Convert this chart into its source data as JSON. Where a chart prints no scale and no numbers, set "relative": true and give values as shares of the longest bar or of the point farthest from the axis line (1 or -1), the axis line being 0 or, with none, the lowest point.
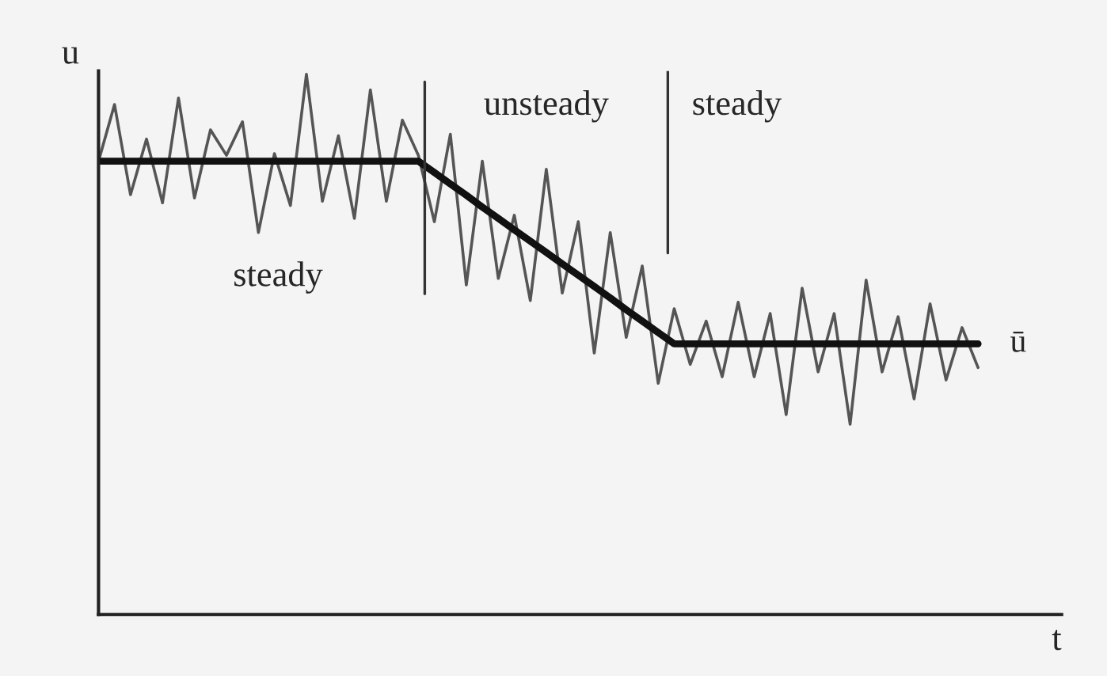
{
  "chart_data": {
    "type": "line",
    "relative": true,
    "xlabel": "t",
    "ylabel": "u",
    "marker": "none",
    "line_style": "solid",
    "categories": [
      null,
      null,
      null,
      null,
      null,
      null,
      null,
      null,
      null,
      null,
      null,
      null,
      null,
      null,
      null,
      null,
      null,
      null,
      null,
      null,
      null,
      null,
      null,
      null,
      null,
      null,
      null,
      null,
      null,
      null,
      null,
      null,
      null,
      null,
      null,
      null,
      null,
      null,
      null,
      null,
      null,
      null,
      null,
      null,
      null,
      null,
      null,
      null,
      null,
      null,
      null,
      null,
      null,
      null,
      null,
      null
    ],
    "annotations": [
      "steady",
      "unsteady",
      "steady"
    ],
    "series": [
      {
        "color": "#555555",
        "values": [
          0.839,
          0.944,
          0.777,
          0.88,
          0.762,
          0.956,
          0.771,
          0.897,
          0.85,
          0.912,
          0.707,
          0.853,
          0.757,
          1.0,
          0.765,
          0.886,
          0.733,
          0.971,
          0.765,
          0.915,
          0.85,
          0.727,
          0.889,
          0.61,
          0.839,
          0.622,
          0.739,
          0.581,
          0.824,
          0.595,
          0.727,
          0.484,
          0.707,
          0.513,
          0.645,
          0.428,
          0.566,
          0.463,
          0.543,
          0.44,
          0.578,
          0.44,
          0.557,
          0.37,
          0.604,
          0.449,
          0.557,
          0.352,
          0.619,
          0.449,
          0.551,
          0.399,
          0.575,
          0.434,
          0.531,
          0.457
        ]
      },
      {
        "name": "ū",
        "color": "#111111",
        "values": [
          0.839,
          0.839,
          0.839,
          0.839,
          0.839,
          0.839,
          0.839,
          0.839,
          0.839,
          0.839,
          0.839,
          0.839,
          0.839,
          0.839,
          0.839,
          0.839,
          0.839,
          0.839,
          0.839,
          0.839,
          0.839,
          0.818,
          0.797,
          0.776,
          0.754,
          0.733,
          0.712,
          0.691,
          0.67,
          0.649,
          0.628,
          0.607,
          0.586,
          0.564,
          0.543,
          0.522,
          0.501,
          0.501,
          0.501,
          0.501,
          0.501,
          0.501,
          0.501,
          0.501,
          0.501,
          0.501,
          0.501,
          0.501,
          0.501,
          0.501,
          0.501,
          0.501,
          0.501,
          0.501,
          0.501,
          0.501
        ]
      }
    ]
  }
}
